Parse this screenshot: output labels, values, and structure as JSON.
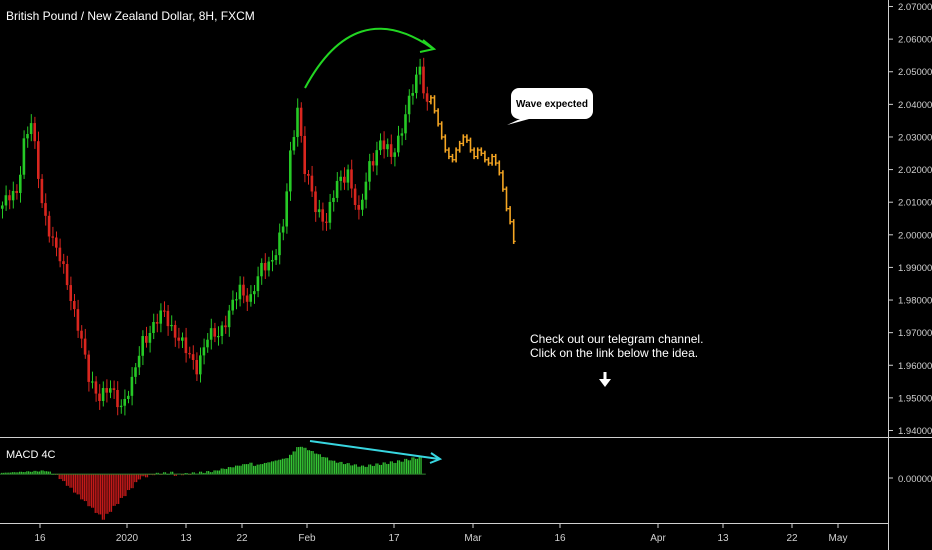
{
  "header": {
    "title": "British Pound / New Zealand Dollar, 8H, FXCM"
  },
  "indicator": {
    "name": "MACD 4C",
    "zero_label": "0.00000"
  },
  "annotations": {
    "bubble": "Wave expected",
    "note_line1": "Check out our telegram channel.",
    "note_line2": "Click on the link below the idea."
  },
  "colors": {
    "background": "#000000",
    "up": "#26c926",
    "down": "#d9261f",
    "projection": "#f5a623",
    "hist_up": "#34c334",
    "hist_down": "#c41a1a",
    "price_arrow": "#22d622",
    "macd_line": "#38d6e0",
    "text": "#ffffff",
    "axis_text": "#d0d0d0"
  },
  "chart_data": [
    {
      "type": "candlestick",
      "title": "British Pound / New Zealand Dollar, 8H, FXCM",
      "ylim": [
        1.938,
        2.072
      ],
      "y_ticks": [
        "2.07000",
        "2.06000",
        "2.05000",
        "2.04000",
        "2.03000",
        "2.02000",
        "2.01000",
        "2.00000",
        "1.99000",
        "1.98000",
        "1.97000",
        "1.96000",
        "1.95000",
        "1.94000"
      ],
      "x_ticks": [
        "16",
        "2020",
        "13",
        "22",
        "Feb",
        "17",
        "Mar",
        "16",
        "Apr",
        "13",
        "22",
        "May"
      ],
      "price_path": [
        {
          "bar": 0,
          "price": 2.009
        },
        {
          "bar": 4,
          "price": 2.013
        },
        {
          "bar": 6,
          "price": 2.029
        },
        {
          "bar": 8,
          "price": 2.034
        },
        {
          "bar": 11,
          "price": 2.01
        },
        {
          "bar": 14,
          "price": 1.998
        },
        {
          "bar": 18,
          "price": 1.986
        },
        {
          "bar": 21,
          "price": 1.972
        },
        {
          "bar": 24,
          "price": 1.956
        },
        {
          "bar": 27,
          "price": 1.951
        },
        {
          "bar": 30,
          "price": 1.952
        },
        {
          "bar": 33,
          "price": 1.948
        },
        {
          "bar": 36,
          "price": 1.954
        },
        {
          "bar": 39,
          "price": 1.968
        },
        {
          "bar": 42,
          "price": 1.972
        },
        {
          "bar": 45,
          "price": 1.976
        },
        {
          "bar": 48,
          "price": 1.97
        },
        {
          "bar": 51,
          "price": 1.964
        },
        {
          "bar": 54,
          "price": 1.96
        },
        {
          "bar": 57,
          "price": 1.968
        },
        {
          "bar": 60,
          "price": 1.97
        },
        {
          "bar": 63,
          "price": 1.976
        },
        {
          "bar": 66,
          "price": 1.983
        },
        {
          "bar": 69,
          "price": 1.981
        },
        {
          "bar": 72,
          "price": 1.989
        },
        {
          "bar": 75,
          "price": 1.993
        },
        {
          "bar": 78,
          "price": 2.002
        },
        {
          "bar": 80,
          "price": 2.024
        },
        {
          "bar": 82,
          "price": 2.04
        },
        {
          "bar": 84,
          "price": 2.02
        },
        {
          "bar": 87,
          "price": 2.008
        },
        {
          "bar": 90,
          "price": 2.005
        },
        {
          "bar": 93,
          "price": 2.015
        },
        {
          "bar": 96,
          "price": 2.02
        },
        {
          "bar": 99,
          "price": 2.005
        },
        {
          "bar": 102,
          "price": 2.022
        },
        {
          "bar": 105,
          "price": 2.028
        },
        {
          "bar": 108,
          "price": 2.024
        },
        {
          "bar": 111,
          "price": 2.033
        },
        {
          "bar": 114,
          "price": 2.044
        },
        {
          "bar": 116,
          "price": 2.052
        },
        {
          "bar": 118,
          "price": 2.04
        }
      ],
      "projection": [
        2.042,
        2.038,
        2.034,
        2.03,
        2.026,
        2.024,
        2.023,
        2.026,
        2.028,
        2.03,
        2.029,
        2.026,
        2.024,
        2.026,
        2.025,
        2.023,
        2.022,
        2.024,
        2.022,
        2.019,
        2.014,
        2.008,
        2.004,
        1.998
      ]
    },
    {
      "type": "bar",
      "name": "MACD 4C",
      "ylim": [
        -0.0115,
        0.0085
      ],
      "y_ticks": [
        "0.00000"
      ],
      "segments": [
        {
          "from": 0,
          "to": 12,
          "start": 0.0003,
          "end": 0.0008
        },
        {
          "from": 12,
          "to": 16,
          "start": 0.0008,
          "end": -0.0005
        },
        {
          "from": 16,
          "to": 28,
          "start": -0.001,
          "end": -0.0105
        },
        {
          "from": 28,
          "to": 38,
          "start": -0.0105,
          "end": -0.0012
        },
        {
          "from": 38,
          "to": 42,
          "start": -0.001,
          "end": 0.0
        },
        {
          "from": 42,
          "to": 48,
          "start": 0.0,
          "end": 0.0004
        },
        {
          "from": 48,
          "to": 60,
          "start": -0.0002,
          "end": 0.0008
        },
        {
          "from": 60,
          "to": 70,
          "start": 0.001,
          "end": 0.0028
        },
        {
          "from": 70,
          "to": 80,
          "start": 0.002,
          "end": 0.004
        },
        {
          "from": 80,
          "to": 83,
          "start": 0.0045,
          "end": 0.0072
        },
        {
          "from": 83,
          "to": 92,
          "start": 0.0065,
          "end": 0.003
        },
        {
          "from": 92,
          "to": 100,
          "start": 0.003,
          "end": 0.0018
        },
        {
          "from": 100,
          "to": 110,
          "start": 0.0018,
          "end": 0.003
        },
        {
          "from": 110,
          "to": 117,
          "start": 0.003,
          "end": 0.0042
        }
      ]
    }
  ]
}
